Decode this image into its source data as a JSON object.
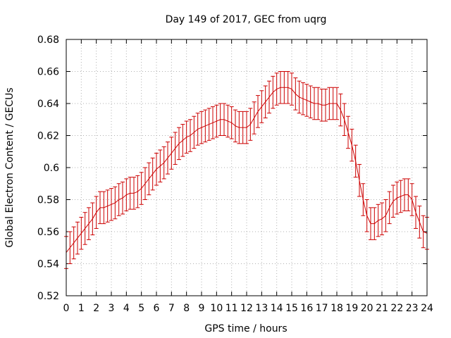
{
  "chart_data": {
    "type": "line",
    "title": "Day 149 of 2017, GEC from uqrg",
    "xlabel": "GPS time / hours",
    "ylabel": "Global Electron Content / GECUs",
    "xlim": [
      0,
      24
    ],
    "ylim": [
      0.52,
      0.68
    ],
    "x_ticks": [
      0,
      1,
      2,
      3,
      4,
      5,
      6,
      7,
      8,
      9,
      10,
      11,
      12,
      13,
      14,
      15,
      16,
      17,
      18,
      19,
      20,
      21,
      22,
      23,
      24
    ],
    "x_tick_labels": [
      "0",
      "1",
      "2",
      "3",
      "4",
      "5",
      "6",
      "7",
      "8",
      "9",
      "10",
      "11",
      "12",
      "13",
      "14",
      "15",
      "16",
      "17",
      "18",
      "19",
      "20",
      "21",
      "22",
      "23",
      "24"
    ],
    "y_ticks": [
      0.52,
      0.54,
      0.56,
      0.58,
      0.6,
      0.62,
      0.64,
      0.66,
      0.68
    ],
    "y_tick_labels": [
      "0.52",
      "0.54",
      "0.56",
      "0.58",
      "0.6",
      "0.62",
      "0.64",
      "0.66",
      "0.68"
    ],
    "grid": true,
    "error_bar_halfwidth": 0.01,
    "series": [
      {
        "color": "#cc0000",
        "x": [
          0,
          0.25,
          0.5,
          0.75,
          1,
          1.25,
          1.5,
          1.75,
          2,
          2.25,
          2.5,
          2.75,
          3,
          3.25,
          3.5,
          3.75,
          4,
          4.25,
          4.5,
          4.75,
          5,
          5.25,
          5.5,
          5.75,
          6,
          6.25,
          6.5,
          6.75,
          7,
          7.25,
          7.5,
          7.75,
          8,
          8.25,
          8.5,
          8.75,
          9,
          9.25,
          9.5,
          9.75,
          10,
          10.25,
          10.5,
          10.75,
          11,
          11.25,
          11.5,
          11.75,
          12,
          12.25,
          12.5,
          12.75,
          13,
          13.25,
          13.5,
          13.75,
          14,
          14.25,
          14.5,
          14.75,
          15,
          15.25,
          15.5,
          15.75,
          16,
          16.25,
          16.5,
          16.75,
          17,
          17.25,
          17.5,
          17.75,
          18,
          18.25,
          18.5,
          18.75,
          19,
          19.25,
          19.5,
          19.75,
          20,
          20.25,
          20.5,
          20.75,
          21,
          21.25,
          21.5,
          21.75,
          22,
          22.25,
          22.5,
          22.75,
          23,
          23.25,
          23.5,
          23.75,
          24
        ],
        "y": [
          0.547,
          0.55,
          0.553,
          0.556,
          0.559,
          0.562,
          0.565,
          0.568,
          0.572,
          0.575,
          0.575,
          0.576,
          0.577,
          0.578,
          0.58,
          0.581,
          0.583,
          0.584,
          0.584,
          0.585,
          0.587,
          0.59,
          0.593,
          0.596,
          0.599,
          0.601,
          0.603,
          0.606,
          0.609,
          0.612,
          0.615,
          0.617,
          0.619,
          0.62,
          0.622,
          0.624,
          0.625,
          0.626,
          0.627,
          0.628,
          0.629,
          0.63,
          0.63,
          0.629,
          0.628,
          0.626,
          0.625,
          0.625,
          0.625,
          0.627,
          0.631,
          0.635,
          0.638,
          0.641,
          0.644,
          0.647,
          0.649,
          0.65,
          0.65,
          0.65,
          0.649,
          0.646,
          0.644,
          0.643,
          0.642,
          0.641,
          0.64,
          0.64,
          0.639,
          0.639,
          0.64,
          0.64,
          0.64,
          0.636,
          0.63,
          0.622,
          0.614,
          0.604,
          0.592,
          0.58,
          0.57,
          0.565,
          0.565,
          0.567,
          0.568,
          0.57,
          0.575,
          0.579,
          0.581,
          0.582,
          0.583,
          0.583,
          0.58,
          0.572,
          0.566,
          0.56,
          0.559
        ]
      }
    ]
  }
}
